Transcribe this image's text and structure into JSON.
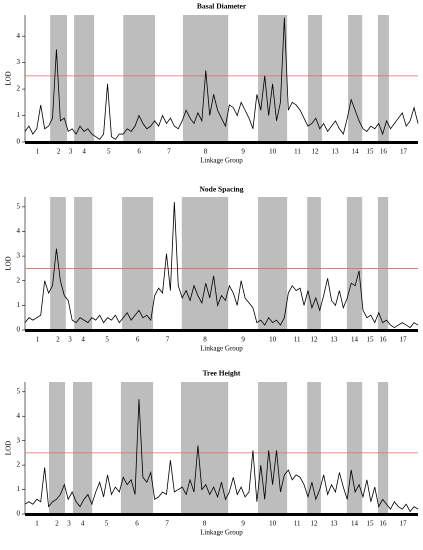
{
  "chart_data": [
    {
      "type": "line",
      "title": "Basal Diameter",
      "ylabel": "LOD",
      "xlabel": "Linkage Group",
      "groups": [
        {
          "label": "1",
          "start": 0,
          "end": 6.4,
          "shaded": false
        },
        {
          "label": "2",
          "start": 6.4,
          "end": 10.7,
          "shaded": true
        },
        {
          "label": "3",
          "start": 10.7,
          "end": 12.5,
          "shaded": false
        },
        {
          "label": "4",
          "start": 12.5,
          "end": 17.6,
          "shaded": true
        },
        {
          "label": "5",
          "start": 17.6,
          "end": 25,
          "shaded": false
        },
        {
          "label": "6",
          "start": 25,
          "end": 33.1,
          "shaded": true
        },
        {
          "label": "7",
          "start": 33.1,
          "end": 40.2,
          "shaded": false
        },
        {
          "label": "8",
          "start": 40.2,
          "end": 51.7,
          "shaded": true
        },
        {
          "label": "9",
          "start": 51.7,
          "end": 59.3,
          "shaded": false
        },
        {
          "label": "10",
          "start": 59.3,
          "end": 66.7,
          "shaded": true
        },
        {
          "label": "11",
          "start": 66.7,
          "end": 72,
          "shaded": false
        },
        {
          "label": "12",
          "start": 72,
          "end": 75.6,
          "shaded": true
        },
        {
          "label": "13",
          "start": 75.6,
          "end": 82.2,
          "shaded": false
        },
        {
          "label": "14",
          "start": 82.2,
          "end": 85.8,
          "shaded": true
        },
        {
          "label": "15",
          "start": 85.8,
          "end": 89.8,
          "shaded": false
        },
        {
          "label": "16",
          "start": 89.8,
          "end": 92.6,
          "shaded": true
        },
        {
          "label": "17",
          "start": 92.6,
          "end": 100,
          "shaded": false
        }
      ],
      "threshold": 2.5,
      "threshold_color": "#e06868",
      "x": [
        0,
        1,
        2,
        3,
        4,
        5,
        6,
        7,
        8,
        9,
        10,
        11,
        12,
        13,
        14,
        15,
        16,
        17,
        18,
        19,
        20,
        21,
        22,
        23,
        24,
        25,
        26,
        27,
        28,
        29,
        30,
        31,
        32,
        33,
        34,
        35,
        36,
        37,
        38,
        39,
        40,
        41,
        42,
        43,
        44,
        45,
        46,
        47,
        48,
        49,
        50,
        51,
        52,
        53,
        54,
        55,
        56,
        57,
        58,
        59,
        60,
        61,
        62,
        63,
        64,
        65,
        66,
        67,
        68,
        69,
        70,
        71,
        72,
        73,
        74,
        75,
        76,
        77,
        78,
        79,
        80,
        81,
        82,
        83,
        84,
        85,
        86,
        87,
        88,
        89,
        90,
        91,
        92,
        93,
        94,
        95,
        96,
        97,
        98,
        99,
        100
      ],
      "series": [
        {
          "color": "#000000",
          "values": [
            0.4,
            0.6,
            0.3,
            0.5,
            1.4,
            0.5,
            0.6,
            0.9,
            3.5,
            0.8,
            0.9,
            0.4,
            0.5,
            0.3,
            0.6,
            0.4,
            0.5,
            0.3,
            0.2,
            0.1,
            0.3,
            2.2,
            0.2,
            0.1,
            0.3,
            0.3,
            0.5,
            0.4,
            0.6,
            1.0,
            0.7,
            0.5,
            0.6,
            0.8,
            0.6,
            1.0,
            0.7,
            0.9,
            0.6,
            0.5,
            0.8,
            1.2,
            0.9,
            0.7,
            1.1,
            0.8,
            2.7,
            1.0,
            1.8,
            1.2,
            0.9,
            0.6,
            1.4,
            1.3,
            1.0,
            1.5,
            1.2,
            0.9,
            0.5,
            1.8,
            1.2,
            2.5,
            1.0,
            2.2,
            0.8,
            1.5,
            4.7,
            1.2,
            1.5,
            1.4,
            1.2,
            0.9,
            0.6,
            0.7,
            0.9,
            0.5,
            0.7,
            0.4,
            0.6,
            0.8,
            0.5,
            0.3,
            0.9,
            1.6,
            1.2,
            0.8,
            0.5,
            0.4,
            0.6,
            0.5,
            0.7,
            0.3,
            0.8,
            0.5,
            0.7,
            0.9,
            1.1,
            0.6,
            0.8,
            1.3,
            0.7
          ]
        }
      ],
      "xlim": [
        0,
        100
      ],
      "ylim": [
        0,
        4.8
      ],
      "yticks": [
        0,
        1,
        2,
        3,
        4
      ],
      "shade_color": "#bdbdbd"
    },
    {
      "type": "line",
      "title": "Node Spacing",
      "ylabel": "LOD",
      "xlabel": "Linkage Group",
      "groups": [
        {
          "label": "1",
          "start": 0,
          "end": 6.4,
          "shaded": false
        },
        {
          "label": "2",
          "start": 6.4,
          "end": 10.4,
          "shaded": true
        },
        {
          "label": "3",
          "start": 10.4,
          "end": 12.5,
          "shaded": false
        },
        {
          "label": "4",
          "start": 12.5,
          "end": 17.1,
          "shaded": true
        },
        {
          "label": "5",
          "start": 17.1,
          "end": 24.7,
          "shaded": false
        },
        {
          "label": "6",
          "start": 24.7,
          "end": 32.6,
          "shaded": true
        },
        {
          "label": "7",
          "start": 32.6,
          "end": 39.9,
          "shaded": false
        },
        {
          "label": "8",
          "start": 39.9,
          "end": 51.7,
          "shaded": true
        },
        {
          "label": "9",
          "start": 51.7,
          "end": 59.3,
          "shaded": false
        },
        {
          "label": "10",
          "start": 59.3,
          "end": 66.7,
          "shaded": true
        },
        {
          "label": "11",
          "start": 66.7,
          "end": 71.8,
          "shaded": false
        },
        {
          "label": "12",
          "start": 71.8,
          "end": 75.3,
          "shaded": true
        },
        {
          "label": "13",
          "start": 75.3,
          "end": 81.9,
          "shaded": false
        },
        {
          "label": "14",
          "start": 81.9,
          "end": 85.8,
          "shaded": true
        },
        {
          "label": "15",
          "start": 85.8,
          "end": 89.8,
          "shaded": false
        },
        {
          "label": "16",
          "start": 89.8,
          "end": 92.4,
          "shaded": true
        },
        {
          "label": "17",
          "start": 92.4,
          "end": 100,
          "shaded": false
        }
      ],
      "threshold": 2.5,
      "threshold_color": "#e06868",
      "x": [
        0,
        1,
        2,
        3,
        4,
        5,
        6,
        7,
        8,
        9,
        10,
        11,
        12,
        13,
        14,
        15,
        16,
        17,
        18,
        19,
        20,
        21,
        22,
        23,
        24,
        25,
        26,
        27,
        28,
        29,
        30,
        31,
        32,
        33,
        34,
        35,
        36,
        37,
        38,
        39,
        40,
        41,
        42,
        43,
        44,
        45,
        46,
        47,
        48,
        49,
        50,
        51,
        52,
        53,
        54,
        55,
        56,
        57,
        58,
        59,
        60,
        61,
        62,
        63,
        64,
        65,
        66,
        67,
        68,
        69,
        70,
        71,
        72,
        73,
        74,
        75,
        76,
        77,
        78,
        79,
        80,
        81,
        82,
        83,
        84,
        85,
        86,
        87,
        88,
        89,
        90,
        91,
        92,
        93,
        94,
        95,
        96,
        97,
        98,
        99,
        100
      ],
      "series": [
        {
          "color": "#000000",
          "values": [
            0.3,
            0.5,
            0.4,
            0.5,
            0.6,
            2.0,
            1.5,
            1.8,
            3.3,
            2.0,
            1.4,
            1.2,
            0.4,
            0.3,
            0.5,
            0.4,
            0.3,
            0.5,
            0.4,
            0.6,
            0.3,
            0.5,
            0.4,
            0.6,
            0.3,
            0.5,
            0.7,
            0.4,
            0.6,
            0.8,
            0.5,
            0.6,
            0.4,
            1.4,
            1.7,
            1.5,
            3.1,
            1.6,
            5.2,
            1.8,
            1.3,
            1.6,
            1.2,
            1.8,
            1.4,
            1.1,
            1.9,
            1.3,
            2.2,
            1.0,
            1.4,
            1.2,
            1.8,
            1.5,
            1.0,
            2.0,
            1.3,
            1.1,
            0.9,
            0.3,
            0.4,
            0.2,
            0.5,
            0.3,
            0.4,
            0.2,
            0.5,
            1.5,
            1.8,
            1.6,
            1.7,
            1.0,
            1.6,
            0.9,
            1.3,
            0.8,
            1.4,
            2.1,
            1.2,
            1.0,
            1.6,
            0.9,
            1.3,
            1.9,
            1.8,
            2.4,
            0.8,
            0.5,
            0.6,
            0.3,
            0.7,
            0.3,
            0.4,
            0.2,
            0.1,
            0.2,
            0.3,
            0.2,
            0.1,
            0.3,
            0.2
          ]
        }
      ],
      "xlim": [
        0,
        100
      ],
      "ylim": [
        0,
        5.4
      ],
      "yticks": [
        0,
        1,
        2,
        3,
        4,
        5
      ],
      "shade_color": "#bdbdbd"
    },
    {
      "type": "line",
      "title": "Tree Height",
      "ylabel": "LOD",
      "xlabel": "Linkage Group",
      "groups": [
        {
          "label": "1",
          "start": 0,
          "end": 6.1,
          "shaded": false
        },
        {
          "label": "2",
          "start": 6.1,
          "end": 10.2,
          "shaded": true
        },
        {
          "label": "3",
          "start": 10.2,
          "end": 12.2,
          "shaded": false
        },
        {
          "label": "4",
          "start": 12.2,
          "end": 17.1,
          "shaded": true
        },
        {
          "label": "5",
          "start": 17.1,
          "end": 24.4,
          "shaded": false
        },
        {
          "label": "6",
          "start": 24.4,
          "end": 32.6,
          "shaded": true
        },
        {
          "label": "7",
          "start": 32.6,
          "end": 39.7,
          "shaded": false
        },
        {
          "label": "8",
          "start": 39.7,
          "end": 51.7,
          "shaded": true
        },
        {
          "label": "9",
          "start": 51.7,
          "end": 59.3,
          "shaded": false
        },
        {
          "label": "10",
          "start": 59.3,
          "end": 66.7,
          "shaded": true
        },
        {
          "label": "11",
          "start": 66.7,
          "end": 71.8,
          "shaded": false
        },
        {
          "label": "12",
          "start": 71.8,
          "end": 75.3,
          "shaded": true
        },
        {
          "label": "13",
          "start": 75.3,
          "end": 81.9,
          "shaded": false
        },
        {
          "label": "14",
          "start": 81.9,
          "end": 85.8,
          "shaded": true
        },
        {
          "label": "15",
          "start": 85.8,
          "end": 89.8,
          "shaded": false
        },
        {
          "label": "16",
          "start": 89.8,
          "end": 92.4,
          "shaded": true
        },
        {
          "label": "17",
          "start": 92.4,
          "end": 100,
          "shaded": false
        }
      ],
      "threshold": 2.5,
      "threshold_color": "#e06868",
      "x": [
        0,
        1,
        2,
        3,
        4,
        5,
        6,
        7,
        8,
        9,
        10,
        11,
        12,
        13,
        14,
        15,
        16,
        17,
        18,
        19,
        20,
        21,
        22,
        23,
        24,
        25,
        26,
        27,
        28,
        29,
        30,
        31,
        32,
        33,
        34,
        35,
        36,
        37,
        38,
        39,
        40,
        41,
        42,
        43,
        44,
        45,
        46,
        47,
        48,
        49,
        50,
        51,
        52,
        53,
        54,
        55,
        56,
        57,
        58,
        59,
        60,
        61,
        62,
        63,
        64,
        65,
        66,
        67,
        68,
        69,
        70,
        71,
        72,
        73,
        74,
        75,
        76,
        77,
        78,
        79,
        80,
        81,
        82,
        83,
        84,
        85,
        86,
        87,
        88,
        89,
        90,
        91,
        92,
        93,
        94,
        95,
        96,
        97,
        98,
        99,
        100
      ],
      "series": [
        {
          "color": "#000000",
          "values": [
            0.4,
            0.5,
            0.4,
            0.6,
            0.5,
            1.9,
            0.3,
            0.5,
            0.6,
            0.8,
            1.2,
            0.6,
            0.9,
            0.5,
            0.3,
            0.6,
            0.8,
            0.4,
            0.9,
            1.3,
            0.7,
            1.6,
            0.8,
            1.1,
            0.9,
            1.5,
            1.2,
            1.4,
            0.8,
            4.7,
            1.5,
            1.3,
            1.7,
            0.6,
            0.7,
            0.9,
            0.8,
            2.2,
            0.9,
            1.0,
            1.1,
            0.8,
            1.4,
            0.9,
            2.8,
            1.0,
            1.2,
            0.8,
            1.1,
            0.7,
            1.3,
            0.6,
            0.9,
            1.5,
            0.8,
            1.1,
            0.7,
            0.9,
            2.6,
            0.5,
            2.0,
            0.6,
            2.6,
            1.2,
            2.6,
            0.9,
            1.6,
            1.8,
            1.4,
            1.6,
            1.5,
            1.2,
            0.7,
            1.3,
            0.6,
            1.0,
            1.6,
            0.8,
            1.2,
            0.9,
            1.7,
            1.1,
            0.6,
            1.8,
            0.9,
            1.2,
            0.7,
            1.4,
            0.5,
            1.1,
            0.3,
            0.6,
            0.4,
            0.2,
            0.5,
            0.3,
            0.2,
            0.4,
            0.1,
            0.3,
            0.2
          ]
        }
      ],
      "xlim": [
        0,
        100
      ],
      "ylim": [
        0,
        5.4
      ],
      "yticks": [
        0,
        1,
        2,
        3,
        4,
        5
      ],
      "shade_color": "#bdbdbd"
    }
  ]
}
